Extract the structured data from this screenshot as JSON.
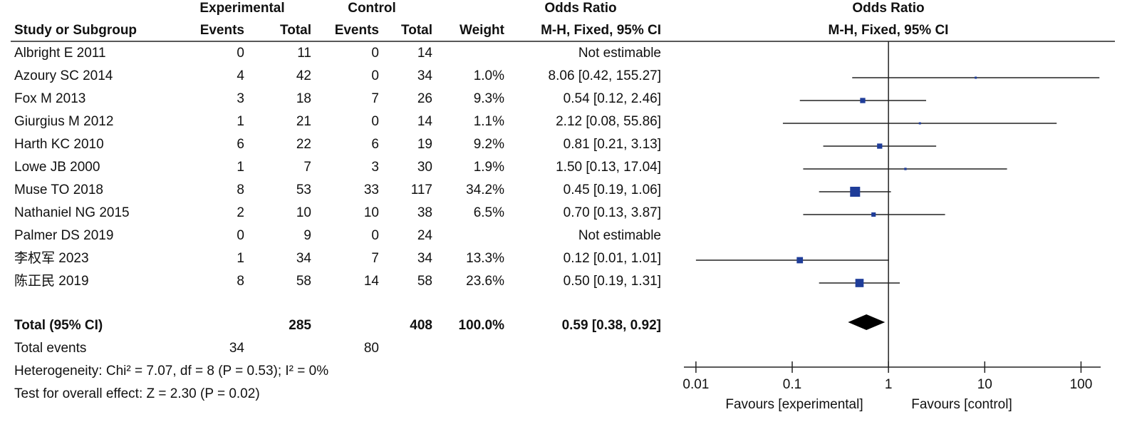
{
  "chart_data": {
    "type": "forest",
    "column_groups": [
      "Experimental",
      "Control",
      "Odds Ratio"
    ],
    "columns": [
      "Study or Subgroup",
      "Events",
      "Total",
      "Events",
      "Total",
      "Weight",
      "M-H, Fixed, 95% CI"
    ],
    "plot_title": "Odds Ratio",
    "plot_subtitle": "M-H, Fixed, 95% CI",
    "color": "#1f3d99",
    "studies": [
      {
        "name": "Albright E 2011",
        "exp_events": 0,
        "exp_total": 11,
        "ctrl_events": 0,
        "ctrl_total": 14,
        "weight": null,
        "weight_label": null,
        "ci_label": "Not estimable",
        "or": null,
        "lower": null,
        "upper": null
      },
      {
        "name": "Azoury SC 2014",
        "exp_events": 4,
        "exp_total": 42,
        "ctrl_events": 0,
        "ctrl_total": 34,
        "weight": 1.0,
        "weight_label": "1.0%",
        "ci_label": "8.06 [0.42, 155.27]",
        "or": 8.06,
        "lower": 0.42,
        "upper": 155.27
      },
      {
        "name": "Fox M 2013",
        "exp_events": 3,
        "exp_total": 18,
        "ctrl_events": 7,
        "ctrl_total": 26,
        "weight": 9.3,
        "weight_label": "9.3%",
        "ci_label": "0.54 [0.12, 2.46]",
        "or": 0.54,
        "lower": 0.12,
        "upper": 2.46
      },
      {
        "name": "Giurgius M 2012",
        "exp_events": 1,
        "exp_total": 21,
        "ctrl_events": 0,
        "ctrl_total": 14,
        "weight": 1.1,
        "weight_label": "1.1%",
        "ci_label": "2.12 [0.08, 55.86]",
        "or": 2.12,
        "lower": 0.08,
        "upper": 55.86
      },
      {
        "name": "Harth KC 2010",
        "exp_events": 6,
        "exp_total": 22,
        "ctrl_events": 6,
        "ctrl_total": 19,
        "weight": 9.2,
        "weight_label": "9.2%",
        "ci_label": "0.81 [0.21, 3.13]",
        "or": 0.81,
        "lower": 0.21,
        "upper": 3.13
      },
      {
        "name": "Lowe JB 2000",
        "exp_events": 1,
        "exp_total": 7,
        "ctrl_events": 3,
        "ctrl_total": 30,
        "weight": 1.9,
        "weight_label": "1.9%",
        "ci_label": "1.50 [0.13, 17.04]",
        "or": 1.5,
        "lower": 0.13,
        "upper": 17.04
      },
      {
        "name": "Muse TO 2018",
        "exp_events": 8,
        "exp_total": 53,
        "ctrl_events": 33,
        "ctrl_total": 117,
        "weight": 34.2,
        "weight_label": "34.2%",
        "ci_label": "0.45 [0.19, 1.06]",
        "or": 0.45,
        "lower": 0.19,
        "upper": 1.06
      },
      {
        "name": "Nathaniel NG 2015",
        "exp_events": 2,
        "exp_total": 10,
        "ctrl_events": 10,
        "ctrl_total": 38,
        "weight": 6.5,
        "weight_label": "6.5%",
        "ci_label": "0.70 [0.13, 3.87]",
        "or": 0.7,
        "lower": 0.13,
        "upper": 3.87
      },
      {
        "name": "Palmer DS 2019",
        "exp_events": 0,
        "exp_total": 9,
        "ctrl_events": 0,
        "ctrl_total": 24,
        "weight": null,
        "weight_label": null,
        "ci_label": "Not estimable",
        "or": null,
        "lower": null,
        "upper": null
      },
      {
        "name": "李权军 2023",
        "exp_events": 1,
        "exp_total": 34,
        "ctrl_events": 7,
        "ctrl_total": 34,
        "weight": 13.3,
        "weight_label": "13.3%",
        "ci_label": "0.12 [0.01, 1.01]",
        "or": 0.12,
        "lower": 0.01,
        "upper": 1.01
      },
      {
        "name": "陈正民 2019",
        "exp_events": 8,
        "exp_total": 58,
        "ctrl_events": 14,
        "ctrl_total": 58,
        "weight": 23.6,
        "weight_label": "23.6%",
        "ci_label": "0.50 [0.19, 1.31]",
        "or": 0.5,
        "lower": 0.19,
        "upper": 1.31
      }
    ],
    "total": {
      "name": "Total (95% CI)",
      "exp_total": 285,
      "ctrl_total": 408,
      "weight_label": "100.0%",
      "ci_label": "0.59 [0.38, 0.92]",
      "or": 0.59,
      "lower": 0.38,
      "upper": 0.92
    },
    "total_events": {
      "name": "Total events",
      "exp_events": 34,
      "ctrl_events": 80
    },
    "heterogeneity": "Heterogeneity: Chi² = 7.07, df = 8 (P = 0.53); I² = 0%",
    "overall_effect": "Test for overall effect: Z = 2.30 (P = 0.02)",
    "x_log": true,
    "xlim": [
      0.0075,
      160
    ],
    "xticks": [
      0.01,
      0.1,
      1,
      10,
      100
    ],
    "favours_left": "Favours [experimental]",
    "favours_right": "Favours [control]"
  }
}
